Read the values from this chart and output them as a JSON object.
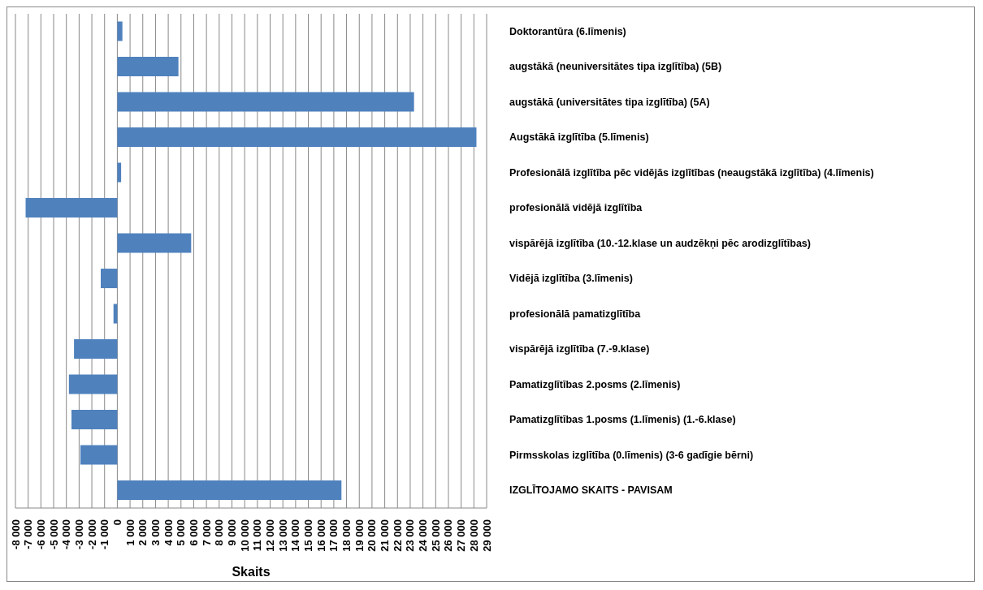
{
  "chart_data": {
    "type": "bar",
    "orientation": "horizontal",
    "xlabel": "Skaits",
    "categories": [
      "Doktorantūra (6.līmenis)",
      "augstākā (neuniversitātes tipa izglītība) (5B)",
      "augstākā (universitātes tipa izglītība) (5A)",
      "Augstākā izglītība (5.līmenis)",
      "Profesionālā izglītība pēc vidējās izglītības (neaugstākā izglītība) (4.līmenis)",
      "profesionālā vidējā izglītība",
      "vispārējā izglītība (10.-12.klase un audzēkņi pēc arodizglītības)",
      "Vidējā izglītība (3.līmenis)",
      "profesionālā pamatizglītība",
      "vispārējā izglītība (7.-9.klase)",
      "Pamatizglītības 2.posms (2.līmenis)",
      "Pamatizglītības 1.posms (1.līmenis) (1.-6.klase)",
      "Pirmsskolas izglītība (0.līmenis) (3-6 gadīgie bērni)",
      "IZGLĪTOJAMO SKAITS - PAVISAM"
    ],
    "values": [
      400,
      4800,
      23300,
      28200,
      300,
      -7200,
      5800,
      -1300,
      -300,
      -3400,
      -3800,
      -3600,
      -2900,
      17600
    ],
    "color": "#4f81bd",
    "xlim": [
      -8000,
      29000
    ],
    "xticks": [
      {
        "value": -8000,
        "label": "-8 000"
      },
      {
        "value": -7000,
        "label": "-7 000"
      },
      {
        "value": -6000,
        "label": "-6 000"
      },
      {
        "value": -5000,
        "label": "-5 000"
      },
      {
        "value": -4000,
        "label": "-4 000"
      },
      {
        "value": -3000,
        "label": "-3 000"
      },
      {
        "value": -2000,
        "label": "-2 000"
      },
      {
        "value": -1000,
        "label": "-1 000"
      },
      0,
      {
        "value": 1000,
        "label": "1 000"
      },
      {
        "value": 2000,
        "label": "2 000"
      },
      {
        "value": 3000,
        "label": "3 000"
      },
      {
        "value": 4000,
        "label": "4 000"
      },
      {
        "value": 5000,
        "label": "5 000"
      },
      {
        "value": 6000,
        "label": "6 000"
      },
      {
        "value": 7000,
        "label": "7 000"
      },
      {
        "value": 8000,
        "label": "8 000"
      },
      {
        "value": 9000,
        "label": "9 000"
      },
      {
        "value": 10000,
        "label": "10 000"
      },
      {
        "value": 11000,
        "label": "11 000"
      },
      {
        "value": 12000,
        "label": "12 000"
      },
      {
        "value": 13000,
        "label": "13 000"
      },
      {
        "value": 14000,
        "label": "14 000"
      },
      {
        "value": 15000,
        "label": "15 000"
      },
      {
        "value": 16000,
        "label": "16 000"
      },
      {
        "value": 17000,
        "label": "17 000"
      },
      {
        "value": 18000,
        "label": "18 000"
      },
      {
        "value": 19000,
        "label": "19 000"
      },
      {
        "value": 20000,
        "label": "20 000"
      },
      {
        "value": 21000,
        "label": "21 000"
      },
      {
        "value": 22000,
        "label": "22 000"
      },
      {
        "value": 23000,
        "label": "23 000"
      },
      {
        "value": 24000,
        "label": "24 000"
      },
      {
        "value": 25000,
        "label": "25 000"
      },
      {
        "value": 26000,
        "label": "26 000"
      },
      {
        "value": 27000,
        "label": "27 000"
      },
      {
        "value": 28000,
        "label": "28 000"
      },
      {
        "value": 29000,
        "label": "29 000"
      }
    ],
    "grid": "x",
    "legend": false
  }
}
